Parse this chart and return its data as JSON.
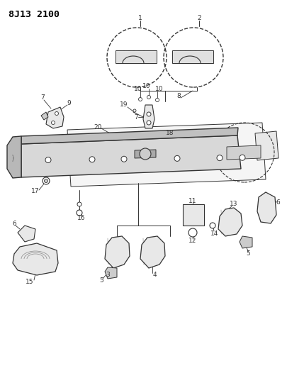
{
  "title": "8J13 2100",
  "bg_color": "#ffffff",
  "title_fontsize": 9.5,
  "fig_width": 4.05,
  "fig_height": 5.33,
  "dpi": 100,
  "line_color": "#333333",
  "fill_light": "#e8e8e8",
  "fill_mid": "#cccccc",
  "fill_dark": "#aaaaaa"
}
